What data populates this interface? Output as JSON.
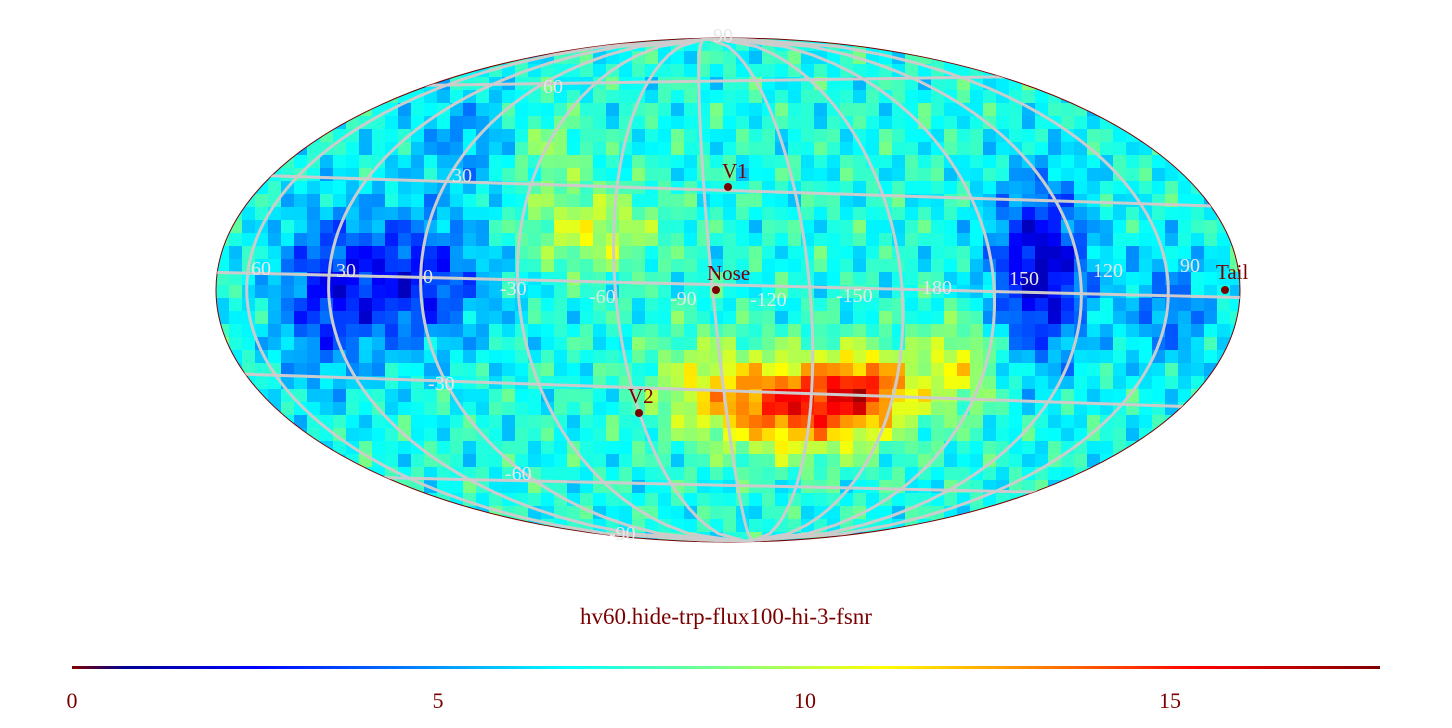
{
  "map": {
    "projection": "Mollweide (all-sky)",
    "palette": "jet",
    "grid_color": "#cccccc",
    "title": "hv60.hide-trp-flux100-hi-3-fsnr",
    "latitude_labels": [
      "90",
      "60",
      "30",
      "-30",
      "-60",
      "-90"
    ],
    "longitude_labels": [
      "60",
      "30",
      "0",
      "-30",
      "-60",
      "-90",
      "-120",
      "-150",
      "180",
      "150",
      "120",
      "90"
    ],
    "markers": [
      {
        "name": "V1",
        "label": "V1"
      },
      {
        "name": "Nose",
        "label": "Nose"
      },
      {
        "name": "V2",
        "label": "V2"
      },
      {
        "name": "Tail",
        "label": "Tail"
      }
    ],
    "colorbar": {
      "min": 0,
      "max": 18,
      "ticks": [
        "0",
        "5",
        "10",
        "15"
      ],
      "marker_color": "#7a0000"
    }
  }
}
